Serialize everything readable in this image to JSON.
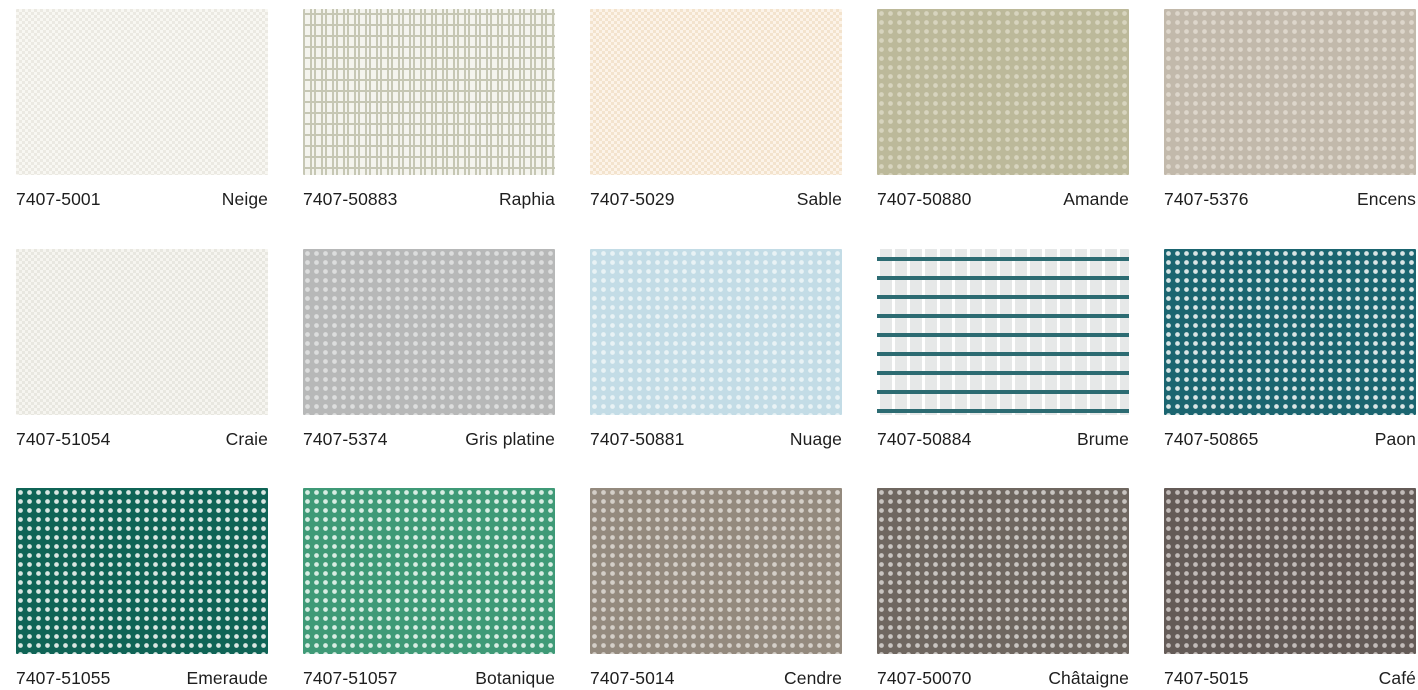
{
  "swatches": [
    {
      "code": "7407-5001",
      "name": "Neige",
      "pattern": "fine",
      "base": "#ebe9e2",
      "weave": "#f8f7f2"
    },
    {
      "code": "7407-50883",
      "name": "Raphia",
      "pattern": "h",
      "base": "#c6c7b4",
      "weave": "#f4f4ee"
    },
    {
      "code": "7407-5029",
      "name": "Sable",
      "pattern": "fine",
      "base": "#f3e3cd",
      "weave": "#fcf3e8"
    },
    {
      "code": "7407-50880",
      "name": "Amande",
      "pattern": "grid",
      "base": "#bcb99a",
      "weave": "#d7d4be"
    },
    {
      "code": "7407-5376",
      "name": "Encens",
      "pattern": "grid",
      "base": "#c2b9ab",
      "weave": "#ddd6cb"
    },
    {
      "code": "7407-51054",
      "name": "Craie",
      "pattern": "fine",
      "base": "#e8e7e0",
      "weave": "#f6f5f0"
    },
    {
      "code": "7407-5374",
      "name": "Gris platine",
      "pattern": "grid",
      "base": "#b7b8b8",
      "weave": "#dcdddd"
    },
    {
      "code": "7407-50881",
      "name": "Nuage",
      "pattern": "grid",
      "base": "#c3dce6",
      "weave": "#e8f2f5"
    },
    {
      "code": "7407-50884",
      "name": "Brume",
      "pattern": "dash",
      "base": "#e6e8e8",
      "weave": "#2c6b72"
    },
    {
      "code": "7407-50865",
      "name": "Paon",
      "pattern": "grid",
      "base": "#1b6570",
      "weave": "#d9e5e5"
    },
    {
      "code": "7407-51055",
      "name": "Emeraude",
      "pattern": "grid",
      "base": "#0f6456",
      "weave": "#d9e7e2"
    },
    {
      "code": "7407-51057",
      "name": "Botanique",
      "pattern": "grid",
      "base": "#3f9a77",
      "weave": "#d8ede3"
    },
    {
      "code": "7407-5014",
      "name": "Cendre",
      "pattern": "grid",
      "base": "#948a7e",
      "weave": "#d4cfc8"
    },
    {
      "code": "7407-50070",
      "name": "Châtaigne",
      "pattern": "grid",
      "base": "#6f6760",
      "weave": "#c9c5c1"
    },
    {
      "code": "7407-5015",
      "name": "Café",
      "pattern": "grid",
      "base": "#645b57",
      "weave": "#c2bcb9"
    }
  ]
}
